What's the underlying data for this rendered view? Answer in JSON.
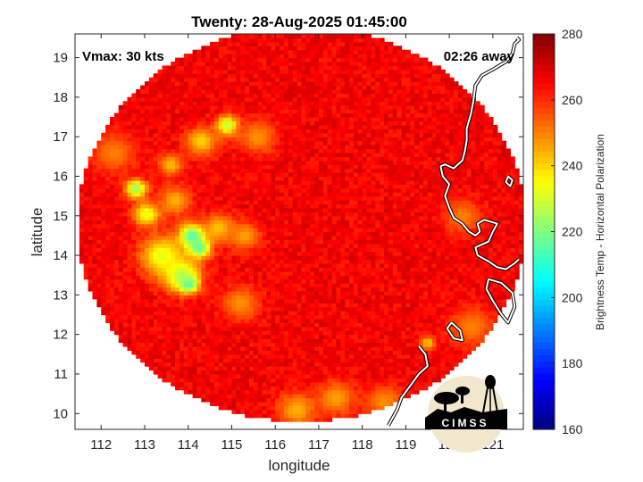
{
  "chart_data": {
    "type": "heatmap",
    "title": "Twenty: 28-Aug-2025 01:45:00",
    "xlabel": "longitude",
    "ylabel": "latitude",
    "xlim": [
      111.4,
      121.7
    ],
    "ylim": [
      9.6,
      19.6
    ],
    "x_ticks": [
      "112",
      "113",
      "114",
      "115",
      "116",
      "117",
      "118",
      "119",
      "120",
      "121"
    ],
    "y_ticks": [
      "10",
      "11",
      "12",
      "13",
      "14",
      "15",
      "16",
      "17",
      "18",
      "19"
    ],
    "swath": {
      "center_lon": 116.6,
      "center_lat": 14.8,
      "radius_lon": 5.15,
      "radius_lat": 5.0
    },
    "background_value": 266,
    "features": [
      {
        "lon": 114.0,
        "lat": 13.3,
        "value": 196,
        "spread": 0.14
      },
      {
        "lon": 114.1,
        "lat": 14.5,
        "value": 212,
        "spread": 0.22
      },
      {
        "lon": 114.25,
        "lat": 14.2,
        "value": 214,
        "spread": 0.18
      },
      {
        "lon": 113.85,
        "lat": 13.5,
        "value": 224,
        "spread": 0.3
      },
      {
        "lon": 113.4,
        "lat": 14.0,
        "value": 232,
        "spread": 0.35
      },
      {
        "lon": 112.8,
        "lat": 15.7,
        "value": 222,
        "spread": 0.17
      },
      {
        "lon": 113.05,
        "lat": 15.05,
        "value": 232,
        "spread": 0.22
      },
      {
        "lon": 114.9,
        "lat": 17.3,
        "value": 226,
        "spread": 0.18
      },
      {
        "lon": 114.3,
        "lat": 16.9,
        "value": 240,
        "spread": 0.25
      },
      {
        "lon": 113.6,
        "lat": 16.3,
        "value": 243,
        "spread": 0.2
      },
      {
        "lon": 113.7,
        "lat": 15.4,
        "value": 244,
        "spread": 0.25
      },
      {
        "lon": 114.7,
        "lat": 14.7,
        "value": 242,
        "spread": 0.25
      },
      {
        "lon": 115.3,
        "lat": 14.5,
        "value": 246,
        "spread": 0.25
      },
      {
        "lon": 115.6,
        "lat": 17.0,
        "value": 248,
        "spread": 0.3
      },
      {
        "lon": 112.3,
        "lat": 16.6,
        "value": 250,
        "spread": 0.35
      },
      {
        "lon": 115.2,
        "lat": 12.8,
        "value": 248,
        "spread": 0.3
      },
      {
        "lon": 116.5,
        "lat": 10.1,
        "value": 244,
        "spread": 0.3
      },
      {
        "lon": 117.4,
        "lat": 10.4,
        "value": 246,
        "spread": 0.3
      },
      {
        "lon": 118.5,
        "lat": 10.3,
        "value": 248,
        "spread": 0.3
      },
      {
        "lon": 119.5,
        "lat": 11.8,
        "value": 240,
        "spread": 0.12
      },
      {
        "lon": 120.3,
        "lat": 15.0,
        "value": 250,
        "spread": 0.3
      },
      {
        "lon": 120.5,
        "lat": 12.2,
        "value": 250,
        "spread": 0.35
      }
    ],
    "colorbar": {
      "label": "Brightness Temp - Horizontal Polarization",
      "range": [
        160,
        280
      ],
      "ticks": [
        "160",
        "180",
        "200",
        "220",
        "240",
        "260",
        "280"
      ],
      "colormap": "jet"
    },
    "annotations": {
      "top_left": "Vmax: 30 kts",
      "top_right": "02:26 away"
    },
    "coastline": [
      [
        [
          121.55,
          19.5
        ],
        [
          121.6,
          19.45
        ],
        [
          121.5,
          19.35
        ],
        [
          121.45,
          19.1
        ],
        [
          121.3,
          18.9
        ],
        [
          121.0,
          18.7
        ],
        [
          120.75,
          18.55
        ],
        [
          120.6,
          18.3
        ],
        [
          120.55,
          17.9
        ],
        [
          120.5,
          17.6
        ],
        [
          120.4,
          17.2
        ],
        [
          120.4,
          16.9
        ],
        [
          120.35,
          16.6
        ],
        [
          120.3,
          16.4
        ],
        [
          120.1,
          16.2
        ],
        [
          119.9,
          16.3
        ],
        [
          119.8,
          16.25
        ],
        [
          119.85,
          16.0
        ],
        [
          120.0,
          15.8
        ],
        [
          119.9,
          15.5
        ],
        [
          120.0,
          15.2
        ],
        [
          120.1,
          14.95
        ],
        [
          120.3,
          14.8
        ],
        [
          120.45,
          14.6
        ],
        [
          120.6,
          14.5
        ],
        [
          120.7,
          14.6
        ],
        [
          120.65,
          14.8
        ],
        [
          120.8,
          14.9
        ],
        [
          121.1,
          14.8
        ],
        [
          121.0,
          14.6
        ],
        [
          120.9,
          14.35
        ],
        [
          120.6,
          14.2
        ],
        [
          120.65,
          14.0
        ],
        [
          120.9,
          13.85
        ],
        [
          121.1,
          13.7
        ],
        [
          121.3,
          13.65
        ],
        [
          121.5,
          13.8
        ],
        [
          121.6,
          13.9
        ]
      ],
      [
        [
          119.3,
          11.7
        ],
        [
          119.45,
          11.5
        ],
        [
          119.5,
          11.2
        ],
        [
          119.3,
          11.0
        ],
        [
          119.1,
          10.7
        ],
        [
          118.9,
          10.4
        ],
        [
          118.8,
          10.1
        ],
        [
          118.6,
          9.7
        ]
      ],
      [
        [
          120.05,
          12.3
        ],
        [
          120.25,
          12.1
        ],
        [
          120.3,
          11.85
        ],
        [
          120.1,
          11.9
        ],
        [
          119.95,
          12.15
        ],
        [
          120.05,
          12.3
        ]
      ],
      [
        [
          120.9,
          13.4
        ],
        [
          121.2,
          13.3
        ],
        [
          121.45,
          13.05
        ],
        [
          121.5,
          12.7
        ],
        [
          121.35,
          12.3
        ],
        [
          121.2,
          12.5
        ],
        [
          121.0,
          12.85
        ],
        [
          120.85,
          13.15
        ],
        [
          120.9,
          13.4
        ]
      ],
      [
        [
          121.35,
          16.0
        ],
        [
          121.45,
          15.9
        ],
        [
          121.4,
          15.75
        ],
        [
          121.3,
          15.85
        ],
        [
          121.35,
          16.0
        ]
      ]
    ]
  }
}
